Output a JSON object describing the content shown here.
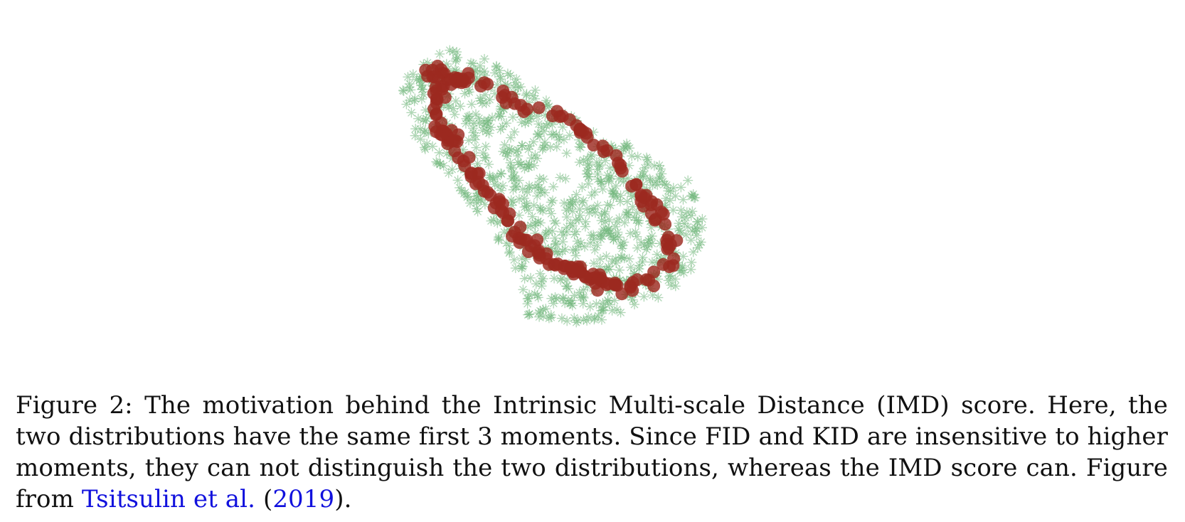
{
  "figure": {
    "colors": {
      "distribution_a": "#6fb67a",
      "distribution_b": "#9c2a20"
    },
    "markers": {
      "distribution_a": "asterisk",
      "distribution_b": "circle"
    }
  },
  "caption": {
    "label": "Figure 2:",
    "text_main": "The motivation behind the Intrinsic Multi-scale Distance (IMD) score. Here, the two distributions have the same first 3 moments. Since FID and KID are insensitive to higher moments, they can not distinguish the two distributions, whereas the IMD score can. Figure from",
    "ref_authors": "Tsitsulin et al.",
    "ref_open": "(",
    "ref_year": "2019",
    "ref_close": ")."
  }
}
